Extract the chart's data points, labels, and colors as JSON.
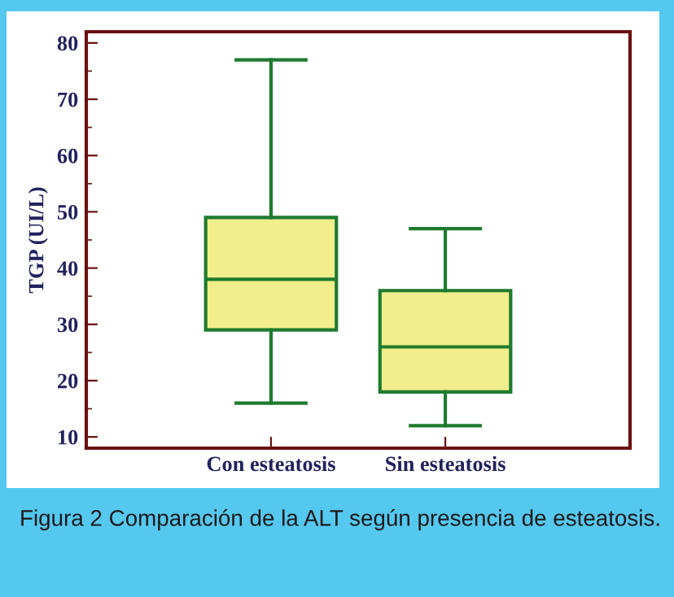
{
  "chart_data": {
    "type": "box",
    "ylabel": "TGP (UI/L)",
    "categories": [
      "Con esteatosis",
      "Sin esteatosis"
    ],
    "boxes": [
      {
        "low": 16,
        "q1": 29,
        "median": 38,
        "q3": 49,
        "high": 77
      },
      {
        "low": 12,
        "q1": 18,
        "median": 26,
        "q3": 36,
        "high": 47
      }
    ],
    "color": "#f2ee8c",
    "ylim": [
      8,
      82
    ],
    "yticks": [
      10,
      20,
      30,
      40,
      50,
      60,
      70,
      80
    ],
    "grid": false,
    "annotations": [
      "Figura 2 Comparación de la ALT según presencia de esteatosis."
    ]
  }
}
